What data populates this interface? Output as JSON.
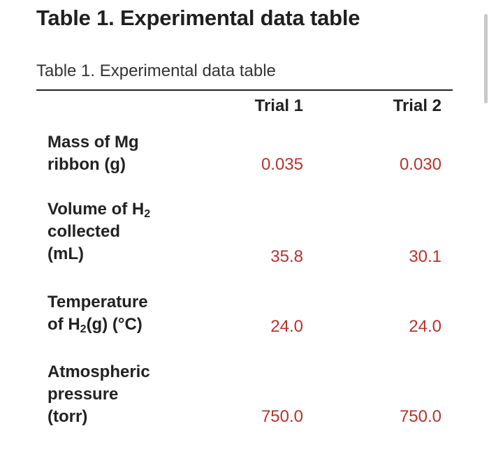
{
  "heading": "Table 1. Experimental data table",
  "caption": "Table 1. Experimental data table",
  "columns": {
    "trial1": "Trial 1",
    "trial2": "Trial 2"
  },
  "rows": [
    {
      "label_lines": [
        "Mass of Mg",
        "ribbon (g)"
      ],
      "trial1": "0.035",
      "trial2": "0.030"
    },
    {
      "label_line1_prefix": "Volume of H",
      "label_line1_sub": "2",
      "label_line2": "collected",
      "label_line3": "(mL)",
      "trial1": "35.8",
      "trial2": "30.1"
    },
    {
      "label_line1": "Temperature",
      "label_line2_prefix": "of H",
      "label_line2_sub": "2",
      "label_line2_suffix": "(g) (°C)",
      "trial1": "24.0",
      "trial2": "24.0"
    },
    {
      "label_lines": [
        "Atmospheric",
        "pressure",
        "(torr)"
      ],
      "trial1": "750.0",
      "trial2": "750.0"
    }
  ],
  "colors": {
    "value_text": "#b5332f",
    "label_text": "#222222"
  }
}
